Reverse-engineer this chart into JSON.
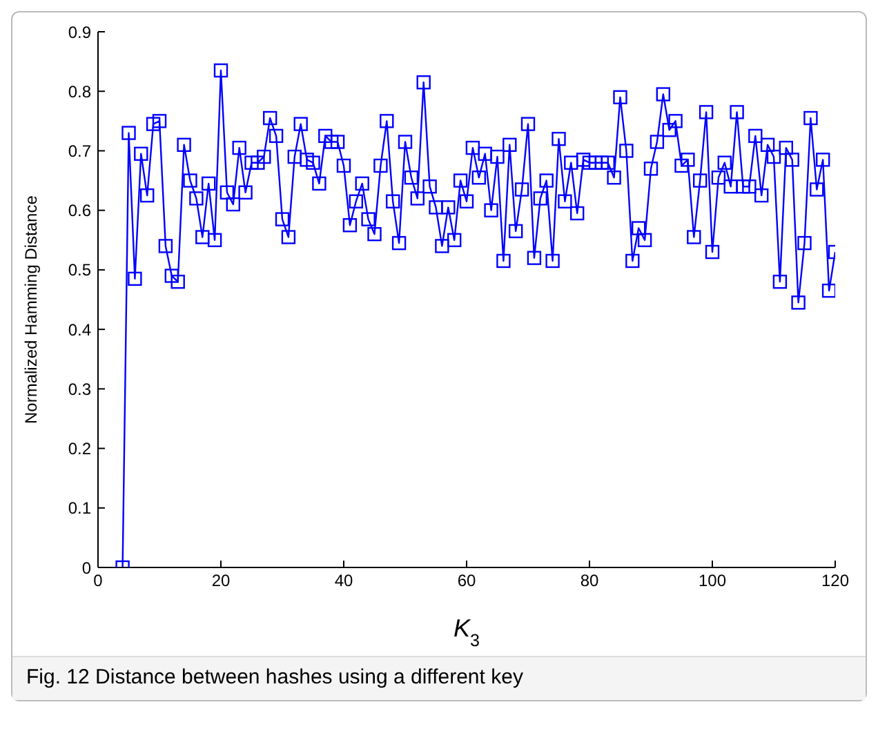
{
  "chart_data": {
    "type": "line",
    "xlabel": "K$_{3}$",
    "ylabel": "Normalized Hamming Distance",
    "annotations": [
      "Fig. 12 Distance between hashes using a different key"
    ],
    "x": [
      4,
      5,
      6,
      7,
      8,
      9,
      10,
      11,
      12,
      13,
      14,
      15,
      16,
      17,
      18,
      19,
      20,
      21,
      22,
      23,
      24,
      25,
      26,
      27,
      28,
      29,
      30,
      31,
      32,
      33,
      34,
      35,
      36,
      37,
      38,
      39,
      40,
      41,
      42,
      43,
      44,
      45,
      46,
      47,
      48,
      49,
      50,
      51,
      52,
      53,
      54,
      55,
      56,
      57,
      58,
      59,
      60,
      61,
      62,
      63,
      64,
      65,
      66,
      67,
      68,
      69,
      70,
      71,
      72,
      73,
      74,
      75,
      76,
      77,
      78,
      79,
      80,
      81,
      82,
      83,
      84,
      85,
      86,
      87,
      88,
      89,
      90,
      91,
      92,
      93,
      94,
      95,
      96,
      97,
      98,
      99,
      100,
      101,
      102,
      103,
      104,
      105,
      106,
      107,
      108,
      109,
      110,
      111,
      112,
      113,
      114,
      115,
      116,
      117,
      118,
      119,
      120
    ],
    "series": [
      {
        "color": "#0000ff",
        "values": [
          0,
          0.73,
          0.485,
          0.695,
          0.625,
          0.745,
          0.75,
          0.54,
          0.49,
          0.48,
          0.71,
          0.65,
          0.62,
          0.555,
          0.645,
          0.55,
          0.835,
          0.63,
          0.61,
          0.705,
          0.63,
          0.68,
          0.68,
          0.69,
          0.755,
          0.725,
          0.585,
          0.555,
          0.69,
          0.745,
          0.685,
          0.68,
          0.645,
          0.725,
          0.715,
          0.715,
          0.675,
          0.575,
          0.615,
          0.645,
          0.585,
          0.56,
          0.675,
          0.75,
          0.615,
          0.545,
          0.715,
          0.655,
          0.62,
          0.815,
          0.64,
          0.605,
          0.54,
          0.605,
          0.55,
          0.65,
          0.615,
          0.705,
          0.655,
          0.695,
          0.6,
          0.69,
          0.515,
          0.71,
          0.565,
          0.635,
          0.745,
          0.52,
          0.62,
          0.65,
          0.515,
          0.72,
          0.615,
          0.68,
          0.595,
          0.685,
          0.68,
          0.68,
          0.68,
          0.68,
          0.655,
          0.79,
          0.7,
          0.515,
          0.57,
          0.55,
          0.67,
          0.715,
          0.795,
          0.735,
          0.75,
          0.675,
          0.685,
          0.555,
          0.65,
          0.765,
          0.53,
          0.655,
          0.68,
          0.64,
          0.765,
          0.64,
          0.64,
          0.725,
          0.625,
          0.71,
          0.69,
          0.48,
          0.705,
          0.685,
          0.445,
          0.545,
          0.755,
          0.635,
          0.685,
          0.465,
          0.53
        ]
      }
    ],
    "xlim": [
      0,
      120
    ],
    "xticks": [
      0,
      20,
      40,
      60,
      80,
      100,
      120
    ],
    "ylim": [
      0,
      0.9
    ],
    "yticks": [
      0,
      0.1,
      0.2,
      0.3,
      0.4,
      0.5,
      0.6,
      0.7,
      0.8,
      0.9
    ],
    "grid": false,
    "legend": false,
    "marker": "square",
    "line_style": "solid"
  }
}
